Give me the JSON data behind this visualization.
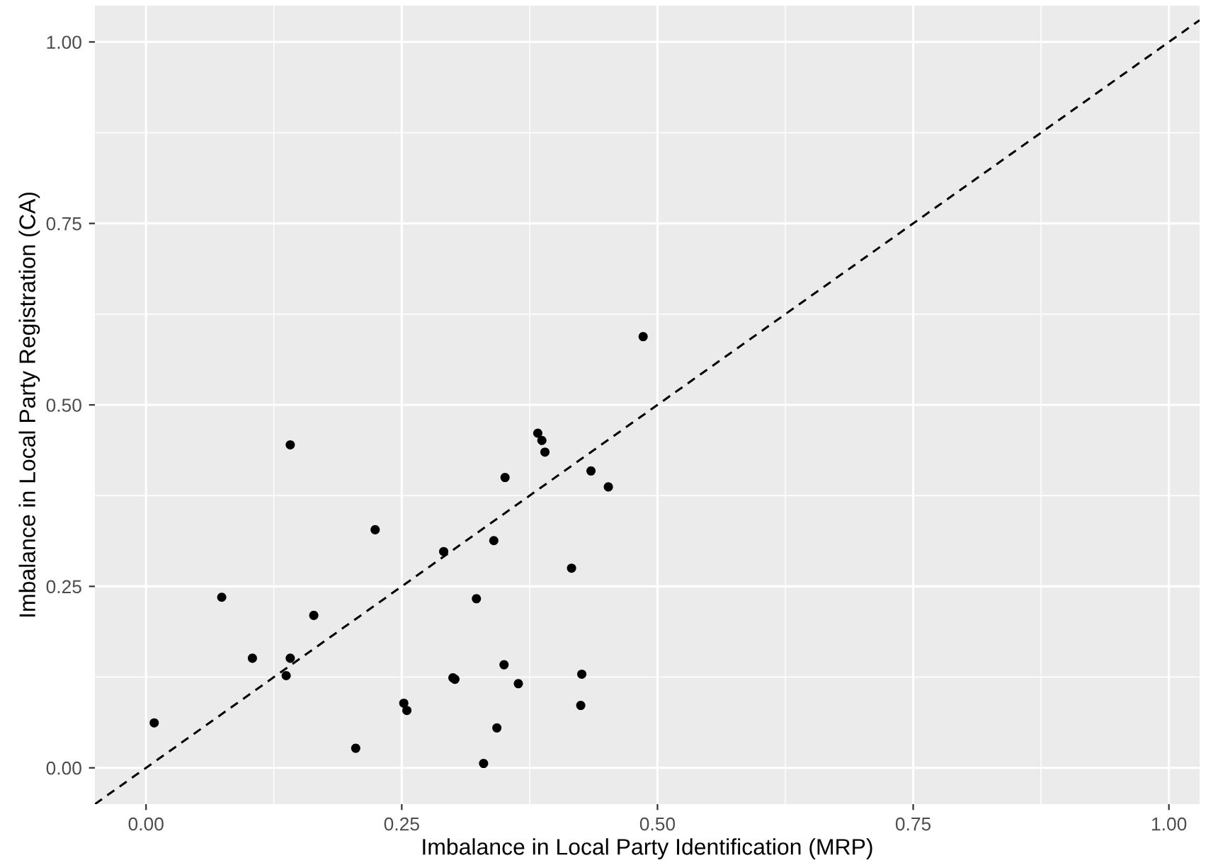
{
  "chart_data": {
    "type": "scatter",
    "xlabel": "Imbalance in Local Party Identification (MRP)",
    "ylabel": "Imbalance in Local Party Registration (CA)",
    "xlim": [
      -0.05,
      1.03
    ],
    "ylim": [
      -0.05,
      1.05
    ],
    "xticks": [
      {
        "value": 0,
        "label": "0.00"
      },
      {
        "value": 0.25,
        "label": "0.25"
      },
      {
        "value": 0.5,
        "label": "0.50"
      },
      {
        "value": 0.75,
        "label": "0.75"
      },
      {
        "value": 1,
        "label": "1.00"
      }
    ],
    "yticks": [
      {
        "value": 0,
        "label": "0.00"
      },
      {
        "value": 0.25,
        "label": "0.25"
      },
      {
        "value": 0.5,
        "label": "0.50"
      },
      {
        "value": 0.75,
        "label": "0.75"
      },
      {
        "value": 1,
        "label": "1.00"
      }
    ],
    "grid": true,
    "marker": "circle",
    "series": [
      {
        "color": "#000000",
        "x": [
          0.141,
          0.224,
          0.074,
          0.164,
          0.104,
          0.141,
          0.137,
          0.008,
          0.205,
          0.252,
          0.255,
          0.291,
          0.3,
          0.302,
          0.323,
          0.34,
          0.35,
          0.351,
          0.364,
          0.343,
          0.33,
          0.383,
          0.387,
          0.39,
          0.416,
          0.435,
          0.452,
          0.426,
          0.425,
          0.486
        ],
        "values": [
          0.445,
          0.328,
          0.235,
          0.21,
          0.151,
          0.151,
          0.127,
          0.062,
          0.027,
          0.089,
          0.079,
          0.298,
          0.124,
          0.122,
          0.233,
          0.313,
          0.142,
          0.4,
          0.116,
          0.055,
          0.006,
          0.461,
          0.451,
          0.435,
          0.275,
          0.409,
          0.387,
          0.129,
          0.086,
          0.594
        ]
      },
      {
        "type": "line",
        "color": "#000000",
        "line_style": "dashed",
        "marker": "none",
        "x": [
          -0.05,
          1.03
        ],
        "values": [
          -0.05,
          1.03
        ]
      }
    ]
  }
}
